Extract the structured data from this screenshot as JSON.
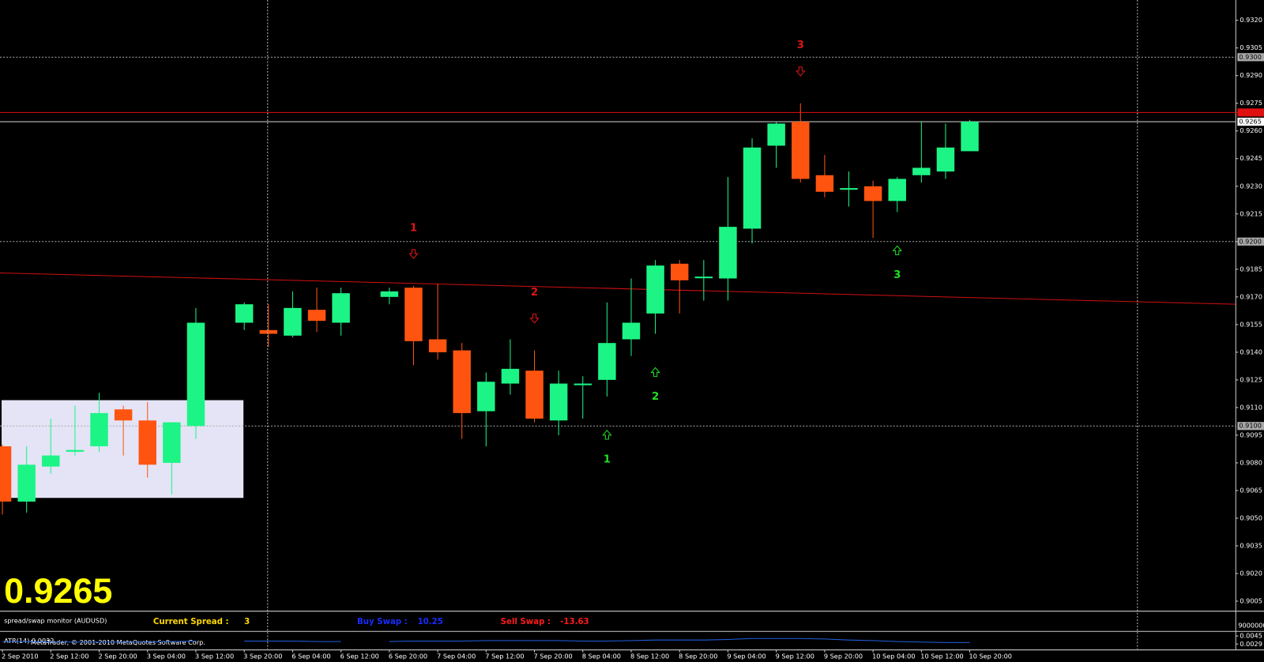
{
  "chart_data": {
    "type": "candlestick",
    "categories": [
      "2 Sep 2010",
      null,
      "2 Sep 12:00",
      null,
      "2 Sep 20:00",
      null,
      "3 Sep 04:00",
      null,
      "3 Sep 12:00",
      null,
      "3 Sep 20:00",
      null,
      "6 Sep 04:00",
      null,
      "6 Sep 12:00",
      null,
      "6 Sep 20:00",
      null,
      "7 Sep 04:00",
      null,
      "7 Sep 12:00",
      null,
      "7 Sep 20:00",
      null,
      "8 Sep 04:00",
      null,
      "8 Sep 12:00",
      null,
      "8 Sep 20:00",
      null,
      "9 Sep 04:00",
      null,
      "9 Sep 12:00",
      null,
      "9 Sep 20:00",
      null,
      "10 Sep 04:00",
      null,
      "10 Sep 12:00",
      null,
      "10 Sep 20:00"
    ],
    "open": [
      0.9089,
      0.9059,
      0.9078,
      0.9086,
      0.9089,
      0.9109,
      0.9103,
      0.908,
      0.91,
      null,
      0.9156,
      0.9152,
      0.9149,
      0.9163,
      0.9156,
      null,
      0.917,
      0.9175,
      0.9147,
      0.9141,
      0.9108,
      0.9123,
      0.913,
      0.9103,
      0.9123,
      0.9125,
      0.9147,
      0.9161,
      0.9188,
      0.9181,
      0.918,
      0.9207,
      0.9252,
      0.9265,
      0.9236,
      0.9229,
      0.923,
      0.9222,
      0.9236,
      0.9238,
      0.9249
    ],
    "high": [
      0.909,
      0.9089,
      0.9104,
      0.9111,
      0.9118,
      0.9111,
      0.9113,
      0.9102,
      0.9164,
      null,
      0.9167,
      0.9166,
      0.9173,
      0.9175,
      0.9175,
      null,
      0.9175,
      0.9176,
      0.9177,
      0.9145,
      0.9129,
      0.9147,
      0.9141,
      0.913,
      0.9127,
      0.9167,
      0.918,
      0.919,
      0.919,
      0.919,
      0.9235,
      0.9256,
      0.9265,
      0.9275,
      0.9247,
      0.9238,
      0.9233,
      0.9235,
      0.9265,
      0.9264,
      0.9266
    ],
    "low": [
      0.9052,
      0.9053,
      0.9074,
      0.9084,
      0.9086,
      0.9084,
      0.9072,
      0.9063,
      0.9093,
      null,
      0.9152,
      0.9143,
      0.9148,
      0.9151,
      0.9149,
      null,
      0.9166,
      0.9133,
      0.9136,
      0.9093,
      0.9089,
      0.9117,
      0.9102,
      0.9095,
      0.9104,
      0.9116,
      0.9138,
      0.915,
      0.9161,
      0.9168,
      0.9168,
      0.9199,
      0.924,
      0.9232,
      0.9224,
      0.9219,
      0.9202,
      0.9216,
      0.9232,
      0.9234,
      0.9249
    ],
    "close": [
      0.9059,
      0.9079,
      0.9084,
      0.9087,
      0.9107,
      0.9103,
      0.9079,
      0.9102,
      0.9156,
      null,
      0.9166,
      0.915,
      0.9164,
      0.9157,
      0.9172,
      null,
      0.9173,
      0.9146,
      0.914,
      0.9107,
      0.9124,
      0.9131,
      0.9104,
      0.9123,
      0.9123,
      0.9145,
      0.9156,
      0.9187,
      0.9179,
      0.9181,
      0.9208,
      0.9251,
      0.9264,
      0.9234,
      0.9227,
      0.9229,
      0.9222,
      0.9234,
      0.924,
      0.9251,
      0.9265
    ],
    "bull_color": "#1cf585",
    "bear_color": "#ff5410",
    "ylim": [
      0.9,
      0.9331
    ],
    "yticks": [
      {
        "value": 0.932,
        "label": "0.9320"
      },
      0.9305,
      {
        "value": 0.929,
        "label": "0.9290"
      },
      0.9275,
      {
        "value": 0.926,
        "label": "0.9260"
      },
      0.9245,
      {
        "value": 0.923,
        "label": "0.9230"
      },
      0.9215,
      {
        "value": 0.92,
        "label": "0.9200"
      },
      0.9185,
      {
        "value": 0.917,
        "label": "0.9170"
      },
      0.9155,
      {
        "value": 0.914,
        "label": "0.9140"
      },
      0.9125,
      {
        "value": 0.911,
        "label": "0.9110"
      },
      0.9095,
      {
        "value": 0.908,
        "label": "0.9080"
      },
      0.9065,
      {
        "value": 0.905,
        "label": "0.9050"
      },
      0.9035,
      {
        "value": 0.902,
        "label": "0.9020"
      },
      0.9005
    ],
    "hlines": [
      {
        "value": 0.93,
        "label": "0.9300"
      },
      {
        "value": 0.92,
        "label": "0.9200"
      },
      {
        "value": 0.91,
        "label": "0.9100"
      }
    ],
    "red_line": 0.927,
    "current_price": {
      "value": 0.9265,
      "label": "0.9265"
    },
    "trendline": {
      "start": 0.9183,
      "end": 0.9166,
      "color": "#d01010"
    },
    "rectangle": {
      "top": 0.9114,
      "bottom": 0.9061,
      "x_range": [
        0,
        10
      ],
      "color": "#e4e4f6"
    },
    "signals": [
      {
        "label": "1",
        "direction": "down",
        "index": 17,
        "color": "#e01515"
      },
      {
        "label": "2",
        "direction": "down",
        "index": 22,
        "color": "#e01515"
      },
      {
        "label": "3",
        "direction": "down",
        "index": 33,
        "color": "#e01515"
      },
      {
        "label": "1",
        "direction": "up",
        "index": 25,
        "color": "#20e020"
      },
      {
        "label": "2",
        "direction": "up",
        "index": 27,
        "color": "#20e020"
      },
      {
        "label": "3",
        "direction": "up",
        "index": 37,
        "color": "#20e020"
      }
    ]
  },
  "spread_monitor": {
    "title": "spread/swap monitor (AUDUSD)",
    "spread_label": "Current Spread :",
    "spread": 3,
    "buy_label": "Buy Swap :",
    "buy": 10.25,
    "sell_label": "Sell Swap :",
    "sell": -13.63,
    "axis_label": "9000000"
  },
  "atr": {
    "label": "ATR(14) 0.0032",
    "color": "#2060e0",
    "values": [
      0.0034,
      0.0034,
      0.0033,
      0.0033,
      0.0033,
      0.0033,
      0.0033,
      0.0034,
      0.0035,
      null,
      0.0035,
      0.0035,
      0.0035,
      0.0034,
      0.0034,
      null,
      0.0034,
      0.0035,
      0.0035,
      0.0035,
      0.0036,
      0.0036,
      0.0036,
      0.0036,
      0.0035,
      0.0035,
      0.0036,
      0.0037,
      0.0037,
      0.0037,
      0.0038,
      0.004,
      0.004,
      0.004,
      0.0039,
      0.0037,
      0.0036,
      0.0034,
      0.0033,
      0.0032,
      0.0032
    ],
    "ylim": [
      0.0019,
      0.0051
    ],
    "yticks": [
      0.0045,
      0.0029
    ]
  },
  "footer": "MetaTrader, © 2001-2010 MetaQuotes Software Corp."
}
